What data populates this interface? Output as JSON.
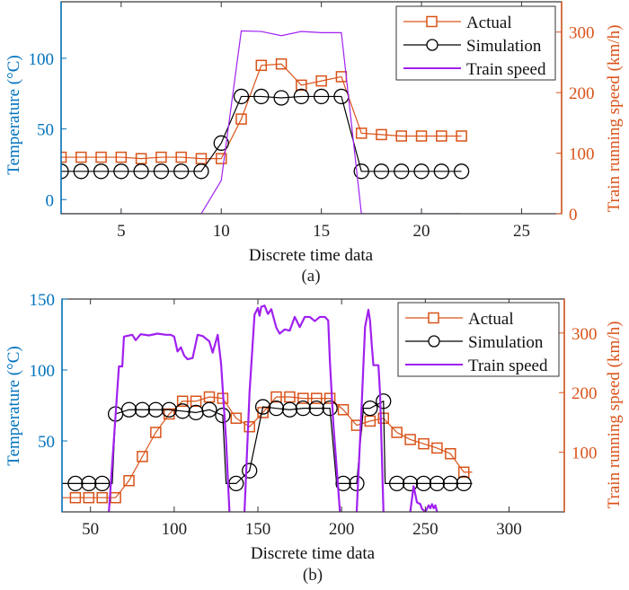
{
  "chart_data": [
    {
      "type": "line",
      "panel_label": "(a)",
      "xlabel": "Discrete time data",
      "ylabel_left": "Temperature (°C)",
      "ylabel_right": "Train running speed (km/h)",
      "xlim": [
        2,
        27
      ],
      "ylim_left": [
        -10,
        140
      ],
      "ylim_right": [
        0,
        350
      ],
      "xticks": [
        5,
        10,
        15,
        20,
        25
      ],
      "yticks_left": [
        0,
        50,
        100
      ],
      "yticks_right": [
        0,
        100,
        200,
        300
      ],
      "grid": false,
      "legend_position": "top-right",
      "series": [
        {
          "name": "Actual",
          "axis": "left",
          "marker": "square",
          "color": "#D95319",
          "x": [
            2,
            3,
            4,
            5,
            6,
            7,
            8,
            9,
            10,
            11,
            12,
            13,
            14,
            15,
            16,
            17,
            18,
            19,
            20,
            21,
            22
          ],
          "y": [
            30,
            30,
            30,
            30,
            29,
            30,
            30,
            29,
            29,
            57,
            95,
            96,
            81,
            84,
            87,
            47,
            46,
            45,
            45,
            45,
            45
          ]
        },
        {
          "name": "Simulation",
          "axis": "left",
          "marker": "circle",
          "color": "#000000",
          "x": [
            2,
            3,
            4,
            5,
            6,
            7,
            8,
            9,
            10,
            11,
            12,
            13,
            14,
            15,
            16,
            17,
            18,
            19,
            20,
            21,
            22
          ],
          "y": [
            20,
            20,
            20,
            20,
            20,
            20,
            20,
            20,
            40,
            73,
            73,
            72,
            73,
            73,
            73,
            20,
            20,
            20,
            20,
            20,
            20
          ]
        },
        {
          "name": "Train speed",
          "axis": "right",
          "marker": "none",
          "color": "#A020F0",
          "x": [
            2,
            3,
            4,
            5,
            6,
            7,
            8,
            9,
            10,
            11,
            12,
            13,
            14,
            15,
            16,
            17,
            18,
            19,
            20,
            21,
            22
          ],
          "y": [
            0,
            0,
            0,
            0,
            0,
            0,
            0,
            0,
            55,
            302,
            301,
            294,
            301,
            299,
            299,
            0,
            0,
            0,
            0,
            0,
            0
          ]
        }
      ]
    },
    {
      "type": "line",
      "panel_label": "(b)",
      "xlabel": "Discrete time data",
      "ylabel_left": "Temperature (°C)",
      "ylabel_right": "Train running speed (km/h)",
      "xlim": [
        33,
        333
      ],
      "ylim_left": [
        0,
        150
      ],
      "ylim_right": [
        0,
        357
      ],
      "xticks": [
        50,
        100,
        150,
        200,
        250,
        300
      ],
      "yticks_left": [
        50,
        100,
        150
      ],
      "yticks_right": [
        100,
        200,
        300
      ],
      "grid": false,
      "legend_position": "top-right",
      "series": [
        {
          "name": "Actual",
          "axis": "left",
          "marker": "square",
          "color": "#D95319",
          "x": [
            33,
            41,
            49,
            57,
            65,
            73,
            81,
            89,
            97,
            105,
            113,
            121,
            129,
            137,
            145,
            153,
            161,
            169,
            177,
            185,
            193,
            201,
            209,
            217,
            225,
            233,
            241,
            249,
            257,
            265,
            273,
            278
          ],
          "y": [
            10,
            10,
            10,
            10,
            10,
            22,
            39,
            56,
            69,
            78,
            78,
            81,
            80,
            66,
            60,
            70,
            81,
            81,
            80,
            80,
            80,
            72,
            61,
            64,
            66,
            56,
            51,
            48,
            45,
            41,
            28,
            28
          ],
          "markers_from_index": 1,
          "markers_to_index": 30
        },
        {
          "name": "Simulation",
          "axis": "left",
          "marker": "circle",
          "color": "#000000",
          "x": [
            33,
            41,
            49,
            57,
            63,
            65,
            73,
            81,
            89,
            97,
            105,
            113,
            121,
            129,
            131,
            137,
            145,
            153,
            161,
            169,
            177,
            185,
            193,
            197,
            201,
            209,
            213,
            217,
            225,
            226,
            233,
            241,
            249,
            257,
            265,
            273,
            278
          ],
          "y": [
            20,
            20,
            20,
            20,
            20,
            69,
            72,
            72,
            72,
            72,
            71,
            70,
            72,
            68,
            20,
            20,
            29,
            74,
            73,
            72,
            73,
            73,
            73,
            20,
            20,
            20,
            73,
            73,
            78,
            20,
            20,
            20,
            20,
            20,
            20,
            20,
            20
          ],
          "marker_x": [
            41,
            49,
            57,
            65,
            73,
            81,
            89,
            97,
            105,
            113,
            121,
            129,
            137,
            145,
            153,
            161,
            169,
            177,
            185,
            193,
            201,
            209,
            217,
            225,
            233,
            241,
            249,
            257,
            265,
            273
          ]
        },
        {
          "name": "Train speed",
          "axis": "right",
          "marker": "none",
          "color": "#A020F0",
          "segments": [
            {
              "x": [
                61,
                65,
                67,
                69,
                70,
                75,
                77,
                80,
                85,
                90,
                95,
                98,
                100,
                102,
                104,
                106,
                108,
                111,
                114,
                117,
                121,
                123,
                126,
                128,
                131,
                133
              ],
              "y": [
                0,
                162,
                244,
                244,
                294,
                297,
                288,
                298,
                296,
                299,
                297,
                297,
                294,
                269,
                276,
                262,
                256,
                258,
                297,
                295,
                286,
                267,
                297,
                249,
                120,
                0
              ]
            },
            {
              "x": [
                142,
                145,
                148,
                150,
                151,
                152,
                154,
                156,
                158,
                161,
                163,
                166,
                169,
                172,
                175,
                178,
                181,
                184,
                187,
                190,
                192,
                193,
                195,
                199
              ],
              "y": [
                0,
                200,
                331,
                342,
                329,
                344,
                346,
                332,
                340,
                309,
                299,
                306,
                304,
                327,
                310,
                327,
                327,
                320,
                327,
                327,
                321,
                253,
                150,
                0
              ]
            },
            {
              "x": [
                209,
                212,
                214,
                216,
                217,
                218,
                219,
                220,
                222,
                223,
                225
              ],
              "y": [
                0,
                180,
                310,
                339,
                320,
                280,
                246,
                246,
                246,
                196,
                0
              ]
            },
            {
              "x": [
                241,
                243,
                245,
                247,
                248,
                250,
                252,
                253,
                254,
                255,
                256,
                257
              ],
              "y": [
                0,
                43,
                16,
                13,
                5,
                0,
                11,
                6,
                13,
                6,
                11,
                0
              ]
            }
          ]
        }
      ]
    }
  ]
}
